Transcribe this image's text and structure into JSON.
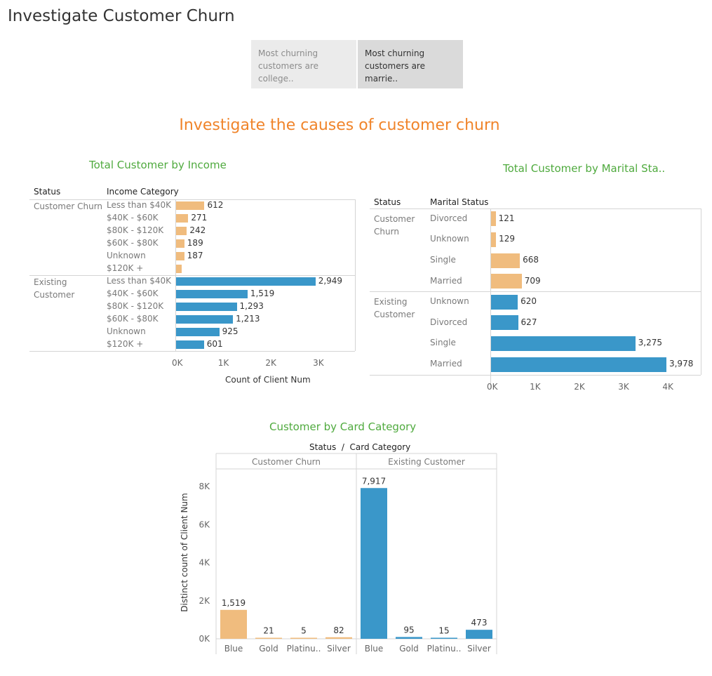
{
  "page": {
    "title": "Investigate Customer Churn"
  },
  "story_tabs": [
    {
      "text": "Most churning\ncustomers are college..",
      "selected": false
    },
    {
      "text": "Most churning\ncustomers are marrie..",
      "selected": true
    }
  ],
  "subtitle": "Investigate the causes of customer churn",
  "colors": {
    "churn": "#f0bc7e",
    "existing": "#3a97c9",
    "title_orange": "#f0842a",
    "section_green": "#4faa3e"
  },
  "income_chart": {
    "title": "Total Customer by Income",
    "col_status": "Status",
    "col_category": "Income Category",
    "xlabel": "Count of Client Num",
    "x_ticks": [
      "0K",
      "1K",
      "2K",
      "3K"
    ],
    "x_max": 3500,
    "groups": [
      {
        "status": "Customer Churn",
        "series": "churn",
        "rows": [
          {
            "label": "Less than $40K",
            "value": 612,
            "display": "612"
          },
          {
            "label": "$40K - $60K",
            "value": 271,
            "display": "271"
          },
          {
            "label": "$80K - $120K",
            "value": 242,
            "display": "242"
          },
          {
            "label": "$60K - $80K",
            "value": 189,
            "display": "189"
          },
          {
            "label": "Unknown",
            "value": 187,
            "display": "187"
          },
          {
            "label": "$120K +",
            "value": 126,
            "display": ""
          }
        ]
      },
      {
        "status": "Existing\nCustomer",
        "series": "existing",
        "rows": [
          {
            "label": "Less than $40K",
            "value": 2949,
            "display": "2,949"
          },
          {
            "label": "$40K - $60K",
            "value": 1519,
            "display": "1,519"
          },
          {
            "label": "$80K - $120K",
            "value": 1293,
            "display": "1,293"
          },
          {
            "label": "$60K - $80K",
            "value": 1213,
            "display": "1,213"
          },
          {
            "label": "Unknown",
            "value": 925,
            "display": "925"
          },
          {
            "label": "$120K +",
            "value": 601,
            "display": "601"
          }
        ]
      }
    ]
  },
  "marital_chart": {
    "title": "Total Customer by Marital Sta..",
    "col_status": "Status",
    "col_category": "Marital Status",
    "x_ticks": [
      "0K",
      "1K",
      "2K",
      "3K",
      "4K"
    ],
    "x_max": 4200,
    "groups": [
      {
        "status": "Customer\nChurn",
        "series": "churn",
        "rows": [
          {
            "label": "Divorced",
            "value": 121,
            "display": "121"
          },
          {
            "label": "Unknown",
            "value": 129,
            "display": "129"
          },
          {
            "label": "Single",
            "value": 668,
            "display": "668"
          },
          {
            "label": "Married",
            "value": 709,
            "display": "709"
          }
        ]
      },
      {
        "status": "Existing\nCustomer",
        "series": "existing",
        "rows": [
          {
            "label": "Unknown",
            "value": 620,
            "display": "620"
          },
          {
            "label": "Divorced",
            "value": 627,
            "display": "627"
          },
          {
            "label": "Single",
            "value": 3275,
            "display": "3,275"
          },
          {
            "label": "Married",
            "value": 3978,
            "display": "3,978"
          }
        ]
      }
    ]
  },
  "chart_data": {
    "type": "bar",
    "title": "Customer by Card Category",
    "header": "Status  /  Card Category",
    "ylabel": "Distinct count of Client Num",
    "y_ticks": [
      "0K",
      "2K",
      "4K",
      "6K",
      "8K"
    ],
    "ylim": [
      0,
      8600
    ],
    "panels": [
      {
        "name": "Customer Churn",
        "series": "churn",
        "categories": [
          "Blue",
          "Gold",
          "Platinu..",
          "Silver"
        ],
        "values": [
          1519,
          21,
          5,
          82
        ],
        "labels": [
          "1,519",
          "21",
          "5",
          "82"
        ]
      },
      {
        "name": "Existing Customer",
        "series": "existing",
        "categories": [
          "Blue",
          "Gold",
          "Platinu..",
          "Silver"
        ],
        "values": [
          7917,
          95,
          15,
          473
        ],
        "labels": [
          "7,917",
          "95",
          "15",
          "473"
        ]
      }
    ]
  }
}
